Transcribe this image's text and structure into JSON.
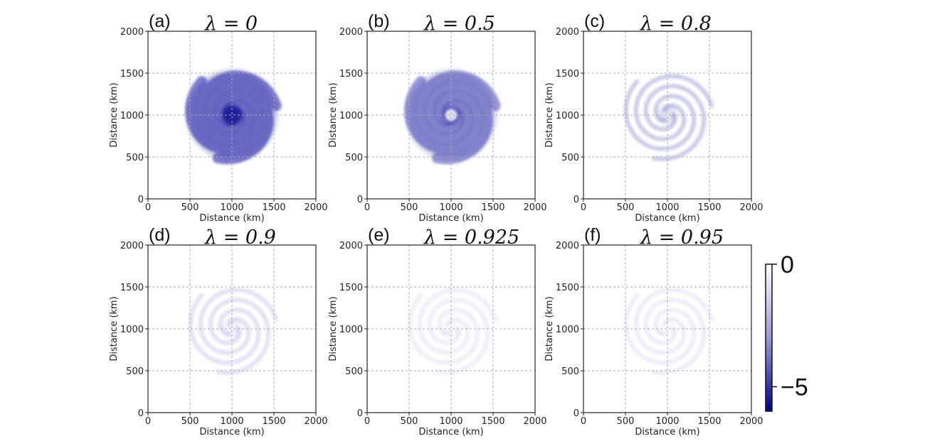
{
  "chart_data": [
    {
      "panel": "(a)",
      "title": "λ = 0",
      "type": "heatmap",
      "intensity": 1.0,
      "xlabel": "Distance (km)",
      "ylabel": "Distance (km)",
      "xlim": [
        0,
        2000
      ],
      "ylim": [
        0,
        2000
      ],
      "xticks": [
        "0",
        "500",
        "1000",
        "1500",
        "2000"
      ],
      "yticks": [
        "0",
        "500",
        "1000",
        "1500",
        "2000"
      ]
    },
    {
      "panel": "(b)",
      "title": "λ = 0.5",
      "type": "heatmap",
      "intensity": 0.8,
      "xlabel": "Distance (km)",
      "ylabel": "Distance (km)",
      "xlim": [
        0,
        2000
      ],
      "ylim": [
        0,
        2000
      ],
      "xticks": [
        "0",
        "500",
        "1000",
        "1500",
        "2000"
      ],
      "yticks": [
        "0",
        "500",
        "1000",
        "1500",
        "2000"
      ]
    },
    {
      "panel": "(c)",
      "title": "λ = 0.8",
      "type": "heatmap",
      "intensity": 0.4,
      "xlabel": "Distance (km)",
      "ylabel": "Distance (km)",
      "xlim": [
        0,
        2000
      ],
      "ylim": [
        0,
        2000
      ],
      "xticks": [
        "0",
        "500",
        "1000",
        "1500",
        "2000"
      ],
      "yticks": [
        "0",
        "500",
        "1000",
        "1500",
        "2000"
      ]
    },
    {
      "panel": "(d)",
      "title": "λ = 0.9",
      "type": "heatmap",
      "intensity": 0.2,
      "xlabel": "Distance (km)",
      "ylabel": "Distance (km)",
      "xlim": [
        0,
        2000
      ],
      "ylim": [
        0,
        2000
      ],
      "xticks": [
        "0",
        "500",
        "1000",
        "1500",
        "2000"
      ],
      "yticks": [
        "0",
        "500",
        "1000",
        "1500",
        "2000"
      ]
    },
    {
      "panel": "(e)",
      "title": "λ = 0.925",
      "type": "heatmap",
      "intensity": 0.1,
      "xlabel": "Distance (km)",
      "ylabel": "Distance (km)",
      "xlim": [
        0,
        2000
      ],
      "ylim": [
        0,
        2000
      ],
      "xticks": [
        "0",
        "500",
        "1000",
        "1500",
        "2000"
      ],
      "yticks": [
        "0",
        "500",
        "1000",
        "1500",
        "2000"
      ]
    },
    {
      "panel": "(f)",
      "title": "λ = 0.95",
      "type": "heatmap",
      "intensity": 0.07,
      "xlabel": "Distance (km)",
      "ylabel": "Distance (km)",
      "xlim": [
        0,
        2000
      ],
      "ylim": [
        0,
        2000
      ],
      "xticks": [
        "0",
        "500",
        "1000",
        "1500",
        "2000"
      ],
      "yticks": [
        "0",
        "500",
        "1000",
        "1500",
        "2000"
      ]
    }
  ],
  "colorbar": {
    "ticks": [
      "0",
      "−5"
    ],
    "range": [
      -6,
      0
    ],
    "tick_values": [
      0,
      -5
    ],
    "color_high": "#ffffff",
    "color_low": "#00008b"
  },
  "colors": {
    "field": "#2a2aa8",
    "field_dark": "#00008b"
  }
}
